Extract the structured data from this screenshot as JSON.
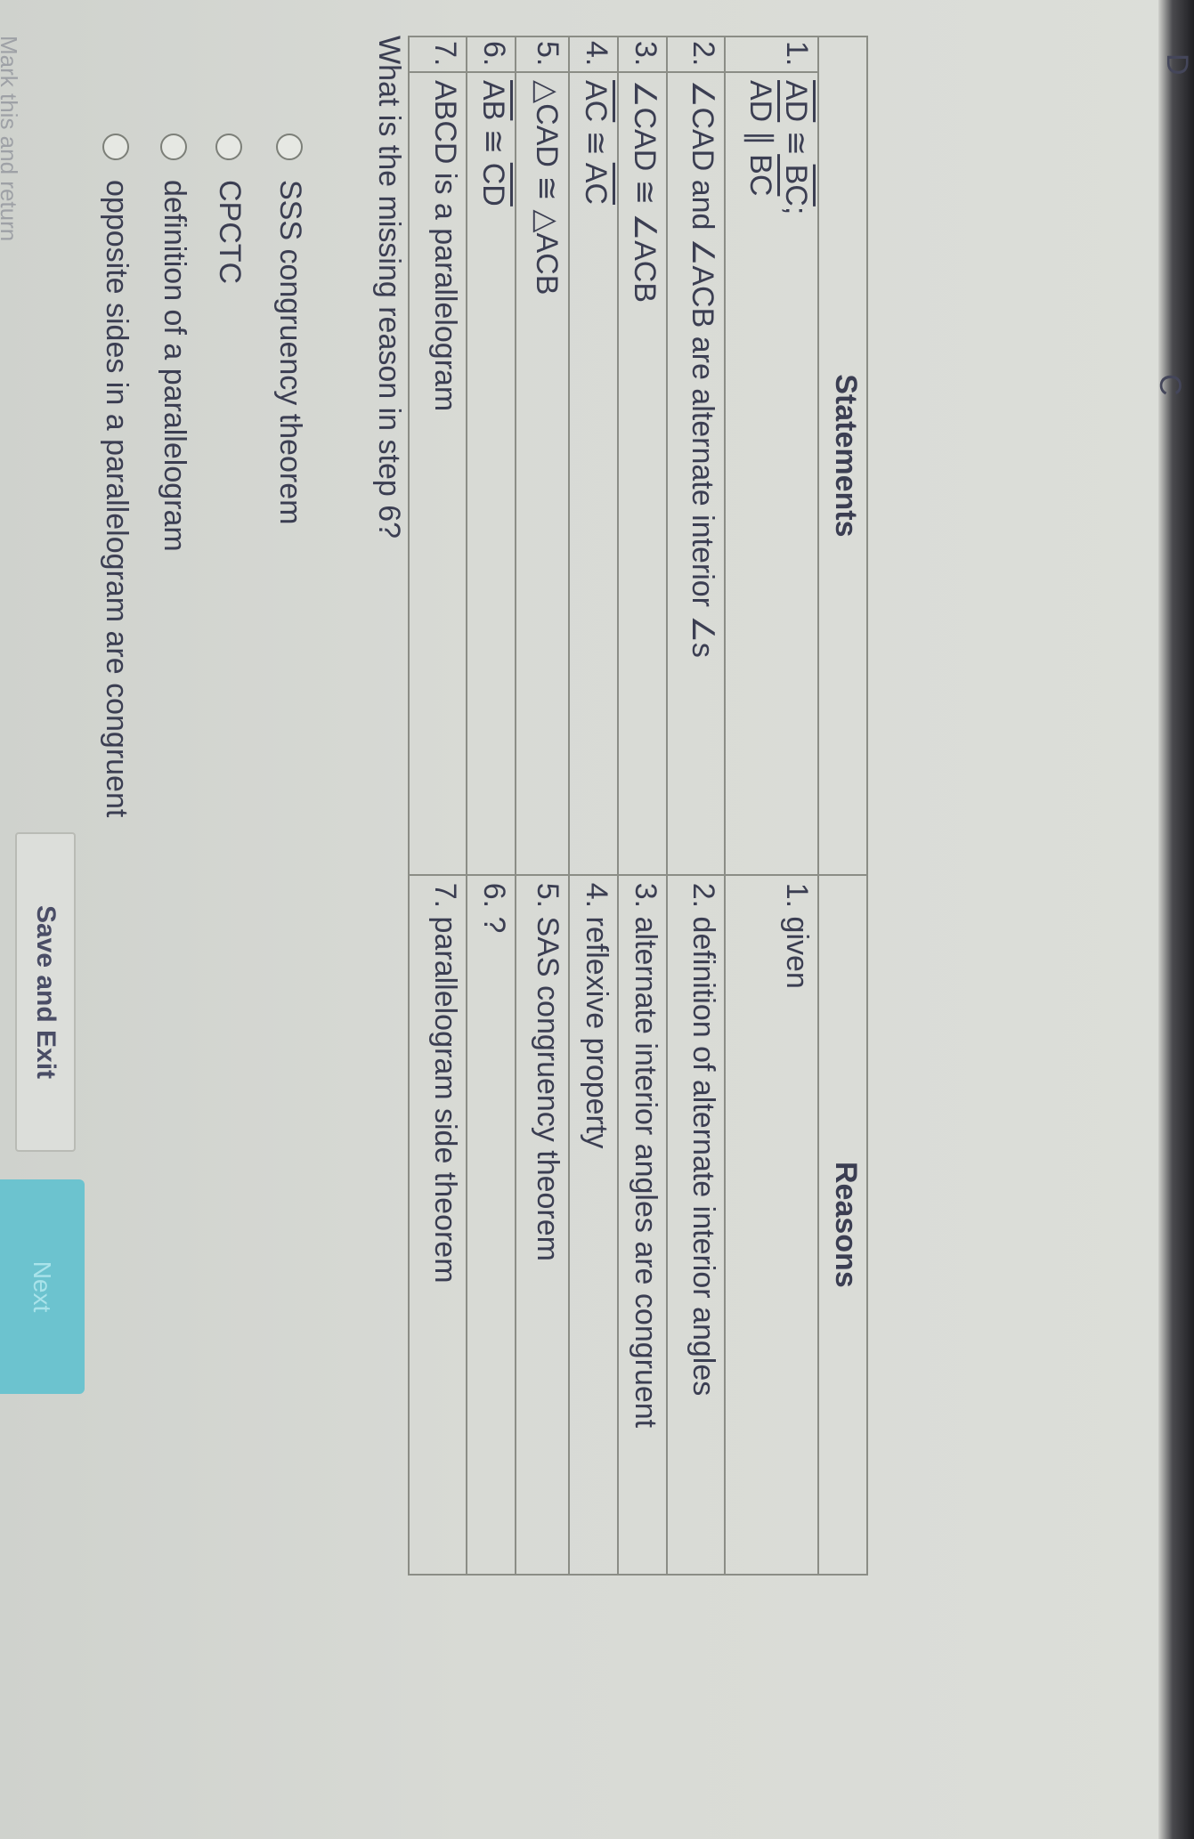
{
  "corner_labels": {
    "left": "D",
    "right": "C"
  },
  "table": {
    "headers": {
      "statements": "Statements",
      "reasons": "Reasons"
    },
    "rows": [
      {
        "num": "1.",
        "statement": [
          [
            {
              "t": "AD",
              "bar": true
            },
            {
              "t": " ≅ "
            },
            {
              "t": "BC",
              "bar": true
            },
            {
              "t": ";"
            }
          ],
          [
            {
              "t": "AD",
              "bar": true
            },
            {
              "t": " ∥ "
            },
            {
              "t": "BC",
              "bar": true
            }
          ]
        ],
        "reason": "1. given"
      },
      {
        "num": "2.",
        "statement": [
          [
            {
              "t": "∠CAD and ∠ACB are alternate interior ∠s"
            }
          ]
        ],
        "reason": "2. definition of alternate interior angles"
      },
      {
        "num": "3.",
        "statement": [
          [
            {
              "t": "∠CAD ≅ ∠ACB"
            }
          ]
        ],
        "reason": "3. alternate interior angles are congruent"
      },
      {
        "num": "4.",
        "statement": [
          [
            {
              "t": "AC",
              "bar": true
            },
            {
              "t": " ≅ "
            },
            {
              "t": "AC",
              "bar": true
            }
          ]
        ],
        "reason": "4. reflexive property"
      },
      {
        "num": "5.",
        "statement": [
          [
            {
              "t": "△CAD ≅ △ACB"
            }
          ]
        ],
        "reason": "5. SAS congruency theorem"
      },
      {
        "num": "6.",
        "statement": [
          [
            {
              "t": "AB",
              "bar": true
            },
            {
              "t": " ≅ "
            },
            {
              "t": "CD",
              "bar": true
            }
          ]
        ],
        "reason": "6. ?"
      },
      {
        "num": "7.",
        "statement": [
          [
            {
              "t": "ABCD is a parallelogram"
            }
          ]
        ],
        "reason": "7. parallelogram side theorem"
      }
    ]
  },
  "question": "What is the missing reason in step 6?",
  "options": [
    "SSS congruency theorem",
    "CPCTC",
    "definition of a parallelogram",
    "opposite sides in a parallelogram are congruent"
  ],
  "buttons": {
    "save_exit": "Save and Exit",
    "next": "Next",
    "mark_return": "Mark this and return"
  },
  "colors": {
    "next_button": "#6cc3cf",
    "text": "#3b3e52"
  }
}
